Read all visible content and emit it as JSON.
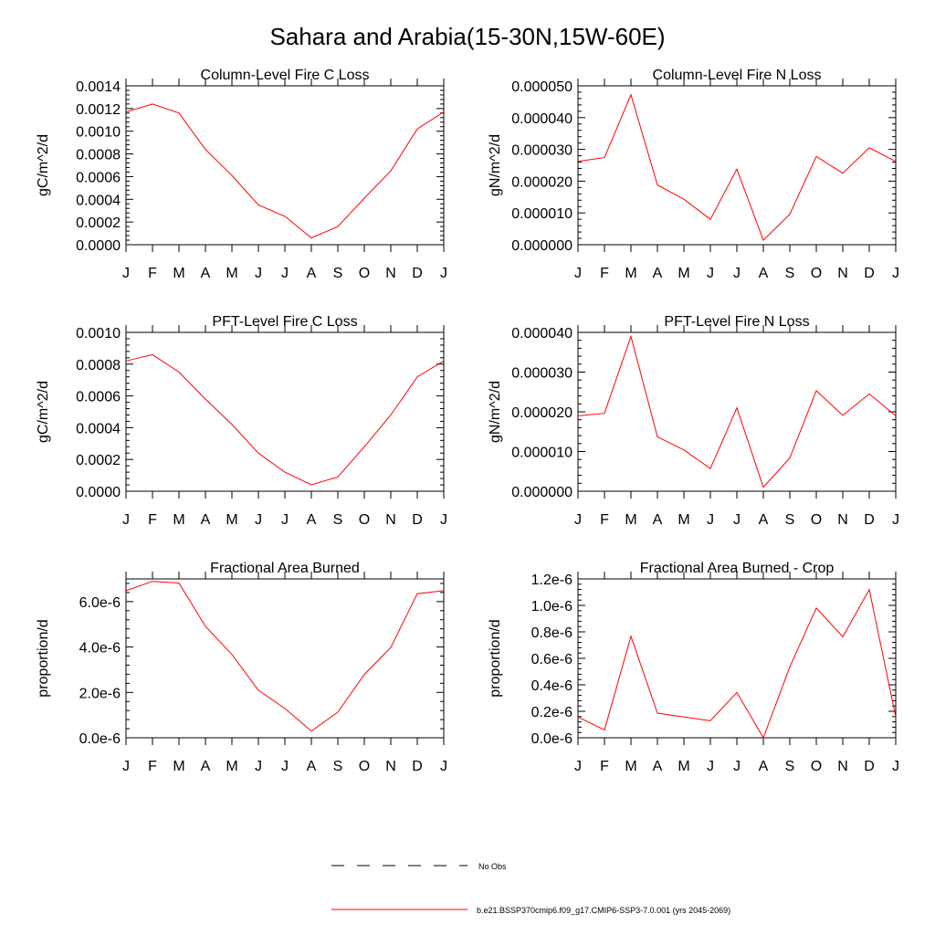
{
  "figure": {
    "title": "Sahara and Arabia(15-30N,15W-60E)"
  },
  "months": [
    "J",
    "F",
    "M",
    "A",
    "M",
    "J",
    "J",
    "A",
    "S",
    "O",
    "N",
    "D",
    "J"
  ],
  "legend": {
    "entries": [
      {
        "label": "No Obs",
        "style": "dashed",
        "color": "#000000"
      },
      {
        "label": "b.e21.BSSP370cmip6.f09_g17.CMIP6-SSP3-7.0.001 (yrs 2045-2069)",
        "style": "solid",
        "color": "#ff0000"
      }
    ]
  },
  "chart_data": [
    {
      "type": "line",
      "title": "Column-Level Fire C Loss",
      "ylabel": "gC/m^2/d",
      "ylim": [
        0,
        0.0014
      ],
      "yticks": [
        "0.0000",
        "0.0002",
        "0.0004",
        "0.0006",
        "0.0008",
        "0.0010",
        "0.0012",
        "0.0014"
      ],
      "categories": [
        "J",
        "F",
        "M",
        "A",
        "M",
        "J",
        "J",
        "A",
        "S",
        "O",
        "N",
        "D",
        "J"
      ],
      "series": [
        {
          "values": [
            0.00117,
            0.00124,
            0.00116,
            0.00084,
            0.00061,
            0.00035,
            0.00025,
            6e-05,
            0.00016,
            0.00041,
            0.00065,
            0.00102,
            0.00117
          ],
          "color": "#ff0000"
        }
      ]
    },
    {
      "type": "line",
      "title": "Column-Level Fire N Loss",
      "ylabel": "gN/m^2/d",
      "ylim": [
        0,
        5e-05
      ],
      "yticks": [
        "0.000000",
        "0.000010",
        "0.000020",
        "0.000030",
        "0.000040",
        "0.000050"
      ],
      "categories": [
        "J",
        "F",
        "M",
        "A",
        "M",
        "J",
        "J",
        "A",
        "S",
        "O",
        "N",
        "D",
        "J"
      ],
      "series": [
        {
          "values": [
            2.62e-05,
            2.74e-05,
            4.72e-05,
            1.88e-05,
            1.43e-05,
            8e-06,
            2.38e-05,
            1.4e-06,
            9.6e-06,
            2.78e-05,
            2.25e-05,
            3.05e-05,
            2.62e-05
          ],
          "color": "#ff0000"
        }
      ]
    },
    {
      "type": "line",
      "title": "PFT-Level Fire C Loss",
      "ylabel": "gC/m^2/d",
      "ylim": [
        0,
        0.001
      ],
      "yticks": [
        "0.0000",
        "0.0002",
        "0.0004",
        "0.0006",
        "0.0008",
        "0.0010"
      ],
      "categories": [
        "J",
        "F",
        "M",
        "A",
        "M",
        "J",
        "J",
        "A",
        "S",
        "O",
        "N",
        "D",
        "J"
      ],
      "series": [
        {
          "values": [
            0.00082,
            0.00086,
            0.00075,
            0.00058,
            0.00042,
            0.00024,
            0.00012,
            4e-05,
            9e-05,
            0.00028,
            0.00048,
            0.00072,
            0.00082
          ],
          "color": "#ff0000"
        }
      ]
    },
    {
      "type": "line",
      "title": "PFT-Level Fire N Loss",
      "ylabel": "gN/m^2/d",
      "ylim": [
        0,
        4e-05
      ],
      "yticks": [
        "0.000000",
        "0.000010",
        "0.000020",
        "0.000030",
        "0.000040"
      ],
      "categories": [
        "J",
        "F",
        "M",
        "A",
        "M",
        "J",
        "J",
        "A",
        "S",
        "O",
        "N",
        "D",
        "J"
      ],
      "series": [
        {
          "values": [
            1.9e-05,
            1.96e-05,
            3.9e-05,
            1.37e-05,
            1.04e-05,
            5.7e-06,
            2.1e-05,
            1e-06,
            8.4e-06,
            2.53e-05,
            1.91e-05,
            2.45e-05,
            1.9e-05
          ],
          "color": "#ff0000"
        }
      ]
    },
    {
      "type": "line",
      "title": "Fractional Area Burned",
      "ylabel": "proportion/d",
      "ylim": [
        0,
        7e-06
      ],
      "yticks": [
        "0.0e-6",
        "2.0e-6",
        "4.0e-6",
        "6.0e-6"
      ],
      "ytick_values": [
        0,
        2e-06,
        4e-06,
        6e-06
      ],
      "categories": [
        "J",
        "F",
        "M",
        "A",
        "M",
        "J",
        "J",
        "A",
        "S",
        "O",
        "N",
        "D",
        "J"
      ],
      "series": [
        {
          "values": [
            6.48e-06,
            6.89e-06,
            6.82e-06,
            4.91e-06,
            3.67e-06,
            2.09e-06,
            1.29e-06,
            2.9e-07,
            1.13e-06,
            2.79e-06,
            3.98e-06,
            6.35e-06,
            6.48e-06
          ],
          "color": "#ff0000"
        }
      ]
    },
    {
      "type": "line",
      "title": "Fractional Area Burned - Crop",
      "ylabel": "proportion/d",
      "ylim": [
        0,
        1.2e-06
      ],
      "yticks": [
        "0.0e-6",
        "0.2e-6",
        "0.4e-6",
        "0.6e-6",
        "0.8e-6",
        "1.0e-6",
        "1.2e-6"
      ],
      "categories": [
        "J",
        "F",
        "M",
        "A",
        "M",
        "J",
        "J",
        "A",
        "S",
        "O",
        "N",
        "D",
        "J"
      ],
      "series": [
        {
          "values": [
            1.57e-07,
            5.9e-08,
            7.67e-07,
            1.86e-07,
            1.57e-07,
            1.28e-07,
            3.42e-07,
            0.0,
            5.36e-07,
            9.8e-07,
            7.63e-07,
            1.12e-06,
            1.57e-07
          ],
          "color": "#ff0000"
        }
      ]
    }
  ]
}
